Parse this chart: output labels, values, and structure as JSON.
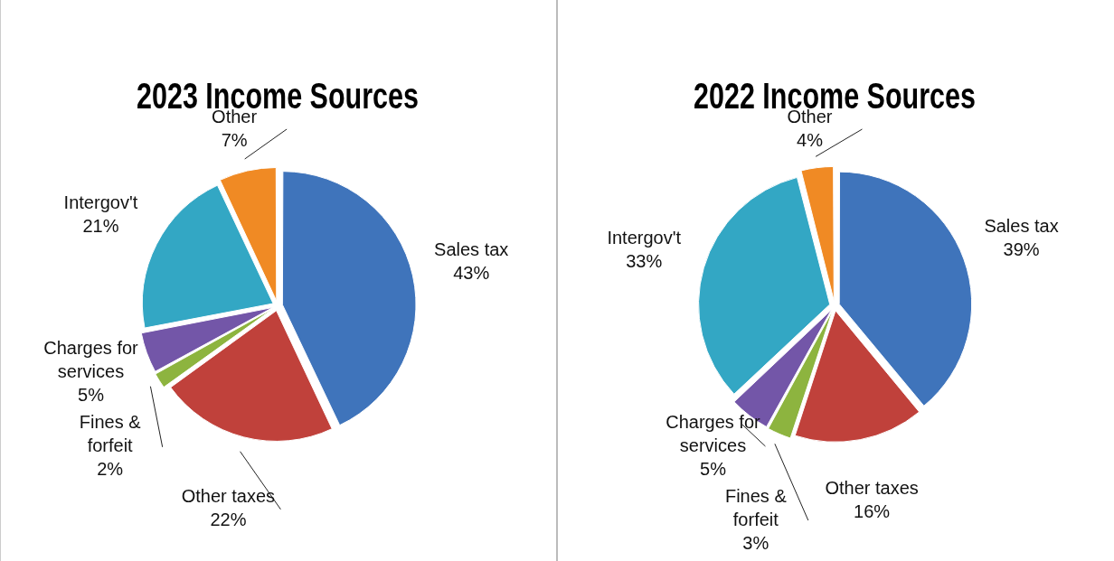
{
  "chart_data": [
    {
      "type": "pie",
      "title": "2023 Income Sources",
      "categories": [
        "Sales tax",
        "Other taxes",
        "Fines & forfeit",
        "Charges for services",
        "Intergov't",
        "Other"
      ],
      "values": [
        43,
        22,
        2,
        5,
        21,
        7
      ],
      "value_labels": [
        "43%",
        "22%",
        "2%",
        "5%",
        "21%",
        "7%"
      ],
      "colors": [
        "#3f74bb",
        "#c0413b",
        "#8db43f",
        "#7356a8",
        "#33a7c4",
        "#f08a24"
      ],
      "legend": false
    },
    {
      "type": "pie",
      "title": "2022 Income Sources",
      "categories": [
        "Sales tax",
        "Other taxes",
        "Fines & forfeit",
        "Charges for services",
        "Intergov't",
        "Other"
      ],
      "values": [
        39,
        16,
        3,
        5,
        33,
        4
      ],
      "value_labels": [
        "39%",
        "16%",
        "3%",
        "5%",
        "33%",
        "4%"
      ],
      "colors": [
        "#3f74bb",
        "#c0413b",
        "#8db43f",
        "#7356a8",
        "#33a7c4",
        "#f08a24"
      ],
      "legend": false
    }
  ]
}
